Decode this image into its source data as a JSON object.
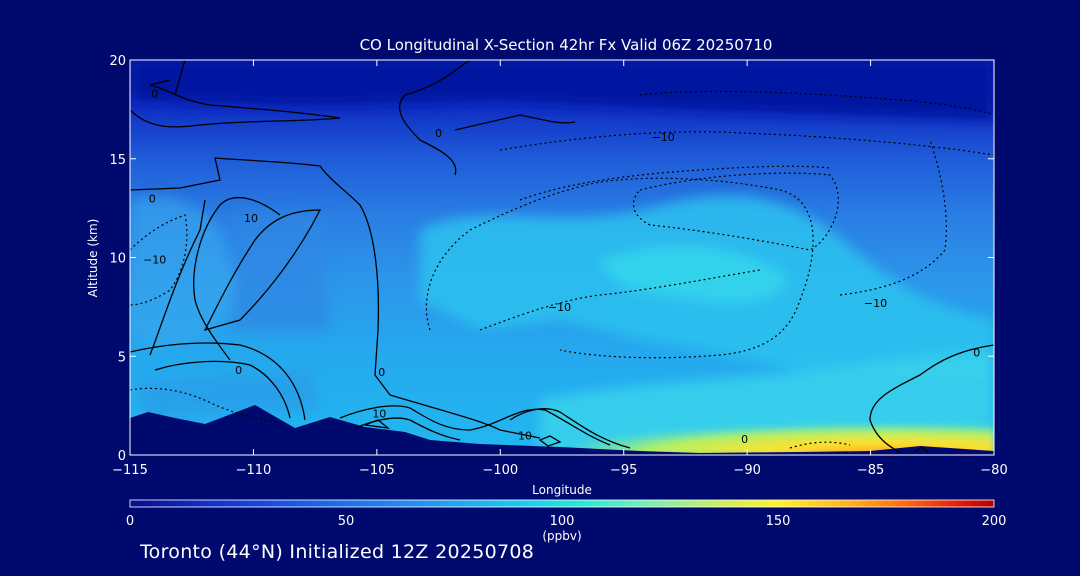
{
  "chart_data": {
    "type": "heatmap",
    "title": "CO Longitudinal X-Section 42hr  Fx Valid 06Z 20250710",
    "xlabel": "Longitude",
    "ylabel": "Altitude (km)",
    "xlim": [
      -115,
      -80
    ],
    "ylim": [
      0,
      20
    ],
    "x_ticks": [
      -115,
      -110,
      -105,
      -100,
      -95,
      -90,
      -85,
      -80
    ],
    "x_tick_labels": [
      "−115",
      "−110",
      "−105",
      "−100",
      "−95",
      "−90",
      "−85",
      "−80"
    ],
    "y_ticks": [
      0,
      5,
      10,
      15,
      20
    ],
    "y_tick_labels": [
      "0",
      "5",
      "10",
      "15",
      "20"
    ],
    "colorbar": {
      "min": 0,
      "max": 200,
      "ticks": [
        0,
        50,
        100,
        150,
        200
      ],
      "tick_labels": [
        "0",
        "50",
        "100",
        "150",
        "200"
      ],
      "unit_label": "(ppbv)",
      "colors": [
        "#0a0a8c",
        "#1434c8",
        "#1e64e6",
        "#2896f0",
        "#1ec8f0",
        "#28e6dc",
        "#78f0b4",
        "#c8f064",
        "#fff02d",
        "#ffb41e",
        "#ff6414",
        "#dc1e0a",
        "#b40000"
      ]
    },
    "contour_labels": [
      {
        "text": "0",
        "x": -114.0,
        "y": 18.3
      },
      {
        "text": "0",
        "x": -102.5,
        "y": 16.3
      },
      {
        "text": "−10",
        "x": -93.4,
        "y": 16.1
      },
      {
        "text": "0",
        "x": -114.1,
        "y": 13.0
      },
      {
        "text": "10",
        "x": -110.1,
        "y": 12.0
      },
      {
        "text": "−10",
        "x": -114.0,
        "y": 9.9
      },
      {
        "text": "−10",
        "x": -97.6,
        "y": 7.5
      },
      {
        "text": "−10",
        "x": -84.8,
        "y": 7.7
      },
      {
        "text": "0",
        "x": -80.7,
        "y": 5.2
      },
      {
        "text": "0",
        "x": -110.6,
        "y": 4.3
      },
      {
        "text": "0",
        "x": -104.8,
        "y": 4.2
      },
      {
        "text": "10",
        "x": -104.9,
        "y": 2.1
      },
      {
        "text": "10",
        "x": -99.0,
        "y": 1.0
      },
      {
        "text": "0",
        "x": -90.1,
        "y": 0.8
      }
    ]
  },
  "footer": "Toronto (44°N) Initialized 12Z 20250708"
}
